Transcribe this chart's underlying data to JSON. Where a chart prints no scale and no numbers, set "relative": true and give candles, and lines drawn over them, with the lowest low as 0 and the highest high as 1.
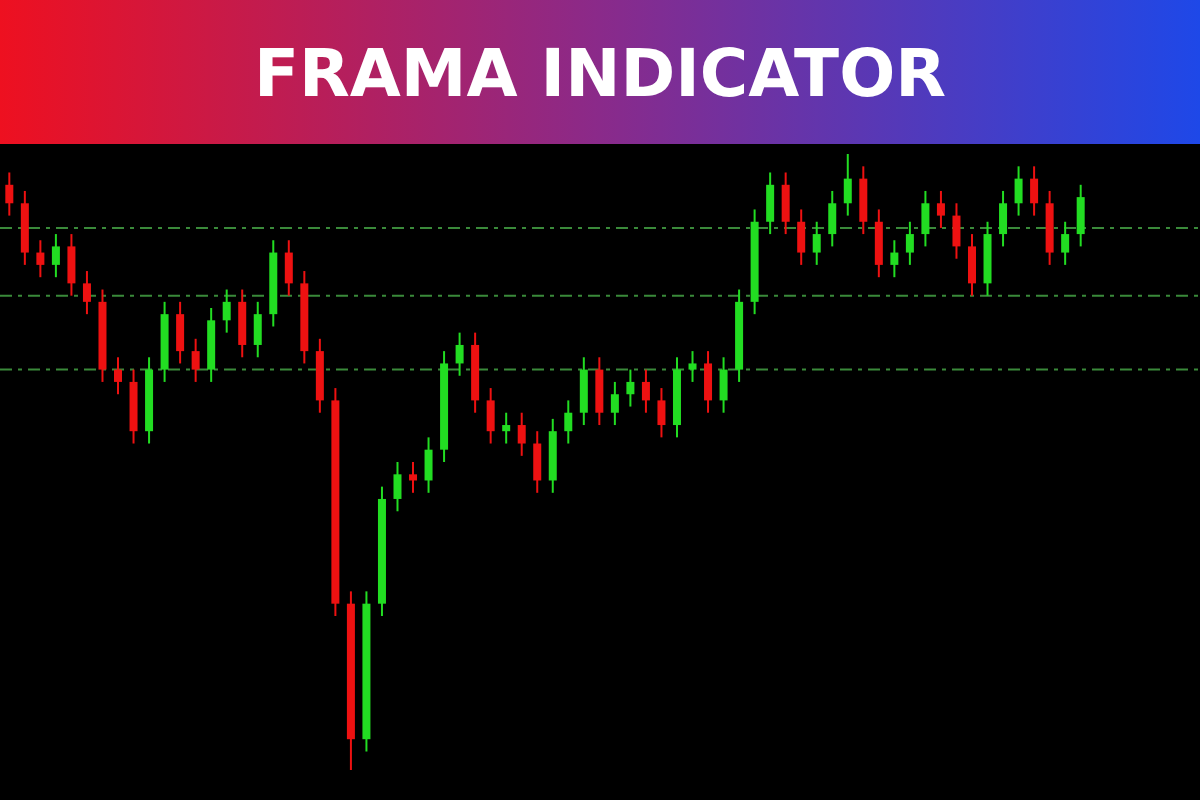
{
  "chart_data": {
    "type": "candlestick",
    "title": "FRAMA INDICATOR",
    "relative": true,
    "categories": [
      null,
      null,
      null,
      null,
      null,
      null,
      null,
      null,
      null,
      null,
      null,
      null,
      null,
      null,
      null,
      null,
      null,
      null,
      null,
      null,
      null,
      null,
      null,
      null,
      null,
      null,
      null,
      null,
      null,
      null,
      null,
      null,
      null,
      null,
      null,
      null,
      null,
      null,
      null,
      null,
      null,
      null,
      null,
      null,
      null,
      null,
      null,
      null,
      null,
      null,
      null,
      null,
      null,
      null,
      null,
      null,
      null,
      null,
      null,
      null,
      null,
      null,
      null,
      null,
      null,
      null,
      null,
      null,
      null,
      null
    ],
    "ohlc": [
      [
        0.95,
        0.97,
        0.9,
        0.92
      ],
      [
        0.92,
        0.94,
        0.82,
        0.84
      ],
      [
        0.84,
        0.86,
        0.8,
        0.82
      ],
      [
        0.82,
        0.87,
        0.8,
        0.85
      ],
      [
        0.85,
        0.87,
        0.77,
        0.79
      ],
      [
        0.79,
        0.81,
        0.74,
        0.76
      ],
      [
        0.76,
        0.78,
        0.63,
        0.65
      ],
      [
        0.65,
        0.67,
        0.61,
        0.63
      ],
      [
        0.63,
        0.65,
        0.53,
        0.55
      ],
      [
        0.55,
        0.67,
        0.53,
        0.65
      ],
      [
        0.65,
        0.76,
        0.63,
        0.74
      ],
      [
        0.74,
        0.76,
        0.66,
        0.68
      ],
      [
        0.68,
        0.7,
        0.63,
        0.65
      ],
      [
        0.65,
        0.75,
        0.63,
        0.73
      ],
      [
        0.73,
        0.78,
        0.71,
        0.76
      ],
      [
        0.76,
        0.78,
        0.67,
        0.69
      ],
      [
        0.69,
        0.76,
        0.67,
        0.74
      ],
      [
        0.74,
        0.86,
        0.72,
        0.84
      ],
      [
        0.84,
        0.86,
        0.77,
        0.79
      ],
      [
        0.79,
        0.81,
        0.66,
        0.68
      ],
      [
        0.68,
        0.7,
        0.58,
        0.6
      ],
      [
        0.6,
        0.62,
        0.25,
        0.27
      ],
      [
        0.27,
        0.29,
        0,
        0.05
      ],
      [
        0.05,
        0.29,
        0.03,
        0.27
      ],
      [
        0.27,
        0.46,
        0.25,
        0.44
      ],
      [
        0.44,
        0.5,
        0.42,
        0.48
      ],
      [
        0.48,
        0.5,
        0.45,
        0.47
      ],
      [
        0.47,
        0.54,
        0.45,
        0.52
      ],
      [
        0.52,
        0.68,
        0.5,
        0.66
      ],
      [
        0.66,
        0.71,
        0.64,
        0.69
      ],
      [
        0.69,
        0.71,
        0.58,
        0.6
      ],
      [
        0.6,
        0.62,
        0.53,
        0.55
      ],
      [
        0.55,
        0.58,
        0.53,
        0.56
      ],
      [
        0.56,
        0.58,
        0.51,
        0.53
      ],
      [
        0.53,
        0.55,
        0.45,
        0.47
      ],
      [
        0.47,
        0.57,
        0.45,
        0.55
      ],
      [
        0.55,
        0.6,
        0.53,
        0.58
      ],
      [
        0.58,
        0.67,
        0.56,
        0.65
      ],
      [
        0.65,
        0.67,
        0.56,
        0.58
      ],
      [
        0.58,
        0.63,
        0.56,
        0.61
      ],
      [
        0.61,
        0.65,
        0.59,
        0.63
      ],
      [
        0.63,
        0.65,
        0.58,
        0.6
      ],
      [
        0.6,
        0.62,
        0.54,
        0.56
      ],
      [
        0.56,
        0.67,
        0.54,
        0.65
      ],
      [
        0.65,
        0.68,
        0.63,
        0.66
      ],
      [
        0.66,
        0.68,
        0.58,
        0.6
      ],
      [
        0.6,
        0.67,
        0.58,
        0.65
      ],
      [
        0.65,
        0.78,
        0.63,
        0.76
      ],
      [
        0.76,
        0.91,
        0.74,
        0.89
      ],
      [
        0.89,
        0.97,
        0.87,
        0.95
      ],
      [
        0.95,
        0.97,
        0.87,
        0.89
      ],
      [
        0.89,
        0.91,
        0.82,
        0.84
      ],
      [
        0.84,
        0.89,
        0.82,
        0.87
      ],
      [
        0.87,
        0.94,
        0.85,
        0.92
      ],
      [
        0.92,
        1,
        0.9,
        0.96
      ],
      [
        0.96,
        0.98,
        0.87,
        0.89
      ],
      [
        0.89,
        0.91,
        0.8,
        0.82
      ],
      [
        0.82,
        0.86,
        0.8,
        0.84
      ],
      [
        0.84,
        0.89,
        0.82,
        0.87
      ],
      [
        0.87,
        0.94,
        0.85,
        0.92
      ],
      [
        0.92,
        0.94,
        0.88,
        0.9
      ],
      [
        0.9,
        0.92,
        0.83,
        0.85
      ],
      [
        0.85,
        0.87,
        0.77,
        0.79
      ],
      [
        0.79,
        0.89,
        0.77,
        0.87
      ],
      [
        0.87,
        0.94,
        0.85,
        0.92
      ],
      [
        0.92,
        0.98,
        0.9,
        0.96
      ],
      [
        0.96,
        0.98,
        0.9,
        0.92
      ],
      [
        0.92,
        0.94,
        0.82,
        0.84
      ],
      [
        0.84,
        0.89,
        0.82,
        0.87
      ],
      [
        0.87,
        0.95,
        0.85,
        0.93
      ]
    ],
    "colors": [
      "#ee1111",
      "#ee1111",
      "#ee1111",
      "#22dd22",
      "#ee1111",
      "#ee1111",
      "#ee1111",
      "#ee1111",
      "#ee1111",
      "#22dd22",
      "#22dd22",
      "#ee1111",
      "#ee1111",
      "#22dd22",
      "#22dd22",
      "#ee1111",
      "#22dd22",
      "#22dd22",
      "#ee1111",
      "#ee1111",
      "#ee1111",
      "#ee1111",
      "#ee1111",
      "#22dd22",
      "#22dd22",
      "#22dd22",
      "#ee1111",
      "#22dd22",
      "#22dd22",
      "#22dd22",
      "#ee1111",
      "#ee1111",
      "#22dd22",
      "#ee1111",
      "#ee1111",
      "#22dd22",
      "#22dd22",
      "#22dd22",
      "#ee1111",
      "#22dd22",
      "#22dd22",
      "#ee1111",
      "#ee1111",
      "#22dd22",
      "#22dd22",
      "#ee1111",
      "#22dd22",
      "#22dd22",
      "#22dd22",
      "#22dd22",
      "#ee1111",
      "#ee1111",
      "#22dd22",
      "#22dd22",
      "#22dd22",
      "#ee1111",
      "#ee1111",
      "#22dd22",
      "#22dd22",
      "#22dd22",
      "#ee1111",
      "#ee1111",
      "#ee1111",
      "#22dd22",
      "#22dd22",
      "#22dd22",
      "#ee1111",
      "#ee1111",
      "#22dd22",
      "#22dd22"
    ],
    "ref_lines": [
      {
        "axis": "y",
        "value": 0.88,
        "color": "#3a8a3a",
        "line_style": "dashed"
      },
      {
        "axis": "y",
        "value": 0.77,
        "color": "#3a8a3a",
        "line_style": "dashed"
      },
      {
        "axis": "y",
        "value": 0.65,
        "color": "#3a8a3a",
        "line_style": "dashed"
      }
    ]
  }
}
